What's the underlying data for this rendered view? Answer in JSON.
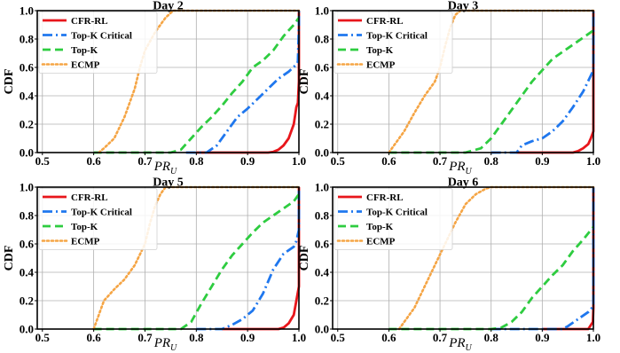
{
  "chart_data": [
    {
      "type": "line",
      "title": "Day 2",
      "ylabel": "CDF",
      "xlabel": "PR",
      "xlabel_sub": "U",
      "xlim": [
        0.49,
        1.0
      ],
      "ylim": [
        0.0,
        1.0
      ],
      "xticks": [
        "0.5",
        "0.6",
        "0.7",
        "0.8",
        "0.9",
        "1.0"
      ],
      "yticks": [
        "0.0",
        "0.2",
        "0.4",
        "0.6",
        "0.8",
        "1.0"
      ],
      "grid": true,
      "legend": "upper-left",
      "series": [
        {
          "name": "CFR-RL",
          "color": "#e8161b",
          "style": "solid",
          "points": [
            [
              0.8,
              0
            ],
            [
              0.94,
              0.0
            ],
            [
              0.95,
              0.005
            ],
            [
              0.96,
              0.02
            ],
            [
              0.97,
              0.05
            ],
            [
              0.98,
              0.1
            ],
            [
              0.99,
              0.2
            ],
            [
              0.995,
              0.32
            ],
            [
              0.998,
              0.35
            ],
            [
              1.0,
              0.5
            ],
            [
              1.0,
              1.0
            ]
          ]
        },
        {
          "name": "Top-K Critical",
          "color": "#1f77ee",
          "style": "dashdot",
          "points": [
            [
              0.78,
              0
            ],
            [
              0.82,
              0.0
            ],
            [
              0.84,
              0.05
            ],
            [
              0.86,
              0.15
            ],
            [
              0.88,
              0.25
            ],
            [
              0.9,
              0.31
            ],
            [
              0.92,
              0.38
            ],
            [
              0.94,
              0.45
            ],
            [
              0.96,
              0.52
            ],
            [
              0.98,
              0.57
            ],
            [
              0.995,
              0.62
            ],
            [
              0.998,
              0.64
            ],
            [
              1.0,
              0.9
            ],
            [
              1.0,
              1.0
            ]
          ]
        },
        {
          "name": "Top-K",
          "color": "#2ecc40",
          "style": "dashed",
          "points": [
            [
              0.6,
              0
            ],
            [
              0.75,
              0.0
            ],
            [
              0.77,
              0.02
            ],
            [
              0.79,
              0.1
            ],
            [
              0.81,
              0.18
            ],
            [
              0.83,
              0.25
            ],
            [
              0.85,
              0.33
            ],
            [
              0.87,
              0.42
            ],
            [
              0.89,
              0.5
            ],
            [
              0.91,
              0.6
            ],
            [
              0.93,
              0.65
            ],
            [
              0.95,
              0.72
            ],
            [
              0.97,
              0.82
            ],
            [
              0.99,
              0.9
            ],
            [
              1.0,
              0.95
            ]
          ]
        },
        {
          "name": "ECMP",
          "color": "#f5a545",
          "style": "dotted",
          "points": [
            [
              0.61,
              0.0
            ],
            [
              0.62,
              0.03
            ],
            [
              0.64,
              0.1
            ],
            [
              0.66,
              0.25
            ],
            [
              0.68,
              0.45
            ],
            [
              0.69,
              0.6
            ],
            [
              0.7,
              0.72
            ],
            [
              0.72,
              0.85
            ],
            [
              0.74,
              0.95
            ],
            [
              0.755,
              1.0
            ],
            [
              1.0,
              1.0
            ]
          ]
        }
      ]
    },
    {
      "type": "line",
      "title": "Day 3",
      "ylabel": "CDF",
      "xlabel": "PR",
      "xlabel_sub": "U",
      "xlim": [
        0.49,
        1.0
      ],
      "ylim": [
        0.0,
        1.0
      ],
      "xticks": [
        "0.5",
        "0.6",
        "0.7",
        "0.8",
        "0.9",
        "1.0"
      ],
      "yticks": [
        "0.0",
        "0.2",
        "0.4",
        "0.6",
        "0.8",
        "1.0"
      ],
      "grid": true,
      "legend": "upper-left",
      "series": [
        {
          "name": "CFR-RL",
          "color": "#e8161b",
          "style": "solid",
          "points": [
            [
              0.85,
              0
            ],
            [
              0.96,
              0.0
            ],
            [
              0.97,
              0.01
            ],
            [
              0.98,
              0.03
            ],
            [
              0.99,
              0.06
            ],
            [
              0.995,
              0.1
            ],
            [
              1.0,
              0.15
            ],
            [
              1.0,
              1.0
            ]
          ]
        },
        {
          "name": "Top-K Critical",
          "color": "#1f77ee",
          "style": "dashdot",
          "points": [
            [
              0.8,
              0
            ],
            [
              0.85,
              0.0
            ],
            [
              0.86,
              0.05
            ],
            [
              0.88,
              0.08
            ],
            [
              0.9,
              0.1
            ],
            [
              0.92,
              0.15
            ],
            [
              0.94,
              0.22
            ],
            [
              0.96,
              0.32
            ],
            [
              0.98,
              0.43
            ],
            [
              1.0,
              0.58
            ],
            [
              1.0,
              1.0
            ]
          ]
        },
        {
          "name": "Top-K",
          "color": "#2ecc40",
          "style": "dashed",
          "points": [
            [
              0.6,
              0
            ],
            [
              0.75,
              0.0
            ],
            [
              0.78,
              0.03
            ],
            [
              0.8,
              0.1
            ],
            [
              0.82,
              0.2
            ],
            [
              0.84,
              0.3
            ],
            [
              0.86,
              0.4
            ],
            [
              0.88,
              0.5
            ],
            [
              0.9,
              0.58
            ],
            [
              0.92,
              0.66
            ],
            [
              0.94,
              0.71
            ],
            [
              0.96,
              0.76
            ],
            [
              0.98,
              0.81
            ],
            [
              1.0,
              0.86
            ]
          ]
        },
        {
          "name": "ECMP",
          "color": "#f5a545",
          "style": "dotted",
          "points": [
            [
              0.6,
              0.0
            ],
            [
              0.61,
              0.05
            ],
            [
              0.63,
              0.15
            ],
            [
              0.65,
              0.28
            ],
            [
              0.67,
              0.4
            ],
            [
              0.69,
              0.5
            ],
            [
              0.7,
              0.6
            ],
            [
              0.71,
              0.75
            ],
            [
              0.72,
              0.88
            ],
            [
              0.73,
              0.97
            ],
            [
              0.74,
              1.0
            ],
            [
              1.0,
              1.0
            ]
          ]
        }
      ]
    },
    {
      "type": "line",
      "title": "Day 5",
      "ylabel": "CDF",
      "xlabel": "PR",
      "xlabel_sub": "U",
      "xlim": [
        0.49,
        1.0
      ],
      "ylim": [
        0.0,
        1.0
      ],
      "xticks": [
        "0.5",
        "0.6",
        "0.7",
        "0.8",
        "0.9",
        "1.0"
      ],
      "yticks": [
        "0.0",
        "0.2",
        "0.4",
        "0.6",
        "0.8",
        "1.0"
      ],
      "grid": true,
      "legend": "upper-left",
      "series": [
        {
          "name": "CFR-RL",
          "color": "#e8161b",
          "style": "solid",
          "points": [
            [
              0.85,
              0
            ],
            [
              0.96,
              0.0
            ],
            [
              0.97,
              0.01
            ],
            [
              0.98,
              0.04
            ],
            [
              0.99,
              0.1
            ],
            [
              0.995,
              0.2
            ],
            [
              1.0,
              0.3
            ],
            [
              1.0,
              1.0
            ]
          ]
        },
        {
          "name": "Top-K Critical",
          "color": "#1f77ee",
          "style": "dashdot",
          "points": [
            [
              0.8,
              0
            ],
            [
              0.85,
              0.0
            ],
            [
              0.87,
              0.03
            ],
            [
              0.89,
              0.07
            ],
            [
              0.91,
              0.13
            ],
            [
              0.93,
              0.25
            ],
            [
              0.95,
              0.42
            ],
            [
              0.97,
              0.53
            ],
            [
              0.99,
              0.58
            ],
            [
              0.995,
              0.62
            ],
            [
              1.0,
              0.7
            ],
            [
              1.0,
              1.0
            ]
          ]
        },
        {
          "name": "Top-K",
          "color": "#2ecc40",
          "style": "dashed",
          "points": [
            [
              0.6,
              0
            ],
            [
              0.77,
              0.0
            ],
            [
              0.79,
              0.05
            ],
            [
              0.81,
              0.18
            ],
            [
              0.83,
              0.3
            ],
            [
              0.85,
              0.42
            ],
            [
              0.87,
              0.52
            ],
            [
              0.89,
              0.6
            ],
            [
              0.91,
              0.68
            ],
            [
              0.93,
              0.75
            ],
            [
              0.95,
              0.8
            ],
            [
              0.97,
              0.85
            ],
            [
              0.99,
              0.9
            ],
            [
              1.0,
              0.95
            ]
          ]
        },
        {
          "name": "ECMP",
          "color": "#f5a545",
          "style": "dotted",
          "points": [
            [
              0.6,
              0.0
            ],
            [
              0.61,
              0.1
            ],
            [
              0.62,
              0.2
            ],
            [
              0.64,
              0.28
            ],
            [
              0.66,
              0.35
            ],
            [
              0.68,
              0.45
            ],
            [
              0.7,
              0.6
            ],
            [
              0.71,
              0.75
            ],
            [
              0.72,
              0.87
            ],
            [
              0.73,
              0.95
            ],
            [
              0.74,
              1.0
            ],
            [
              1.0,
              1.0
            ]
          ]
        }
      ]
    },
    {
      "type": "line",
      "title": "Day 6",
      "ylabel": "CDF",
      "xlabel": "PR",
      "xlabel_sub": "U",
      "xlim": [
        0.49,
        1.0
      ],
      "ylim": [
        0.0,
        1.0
      ],
      "xticks": [
        "0.5",
        "0.6",
        "0.7",
        "0.8",
        "0.9",
        "1.0"
      ],
      "yticks": [
        "0.0",
        "0.2",
        "0.4",
        "0.6",
        "0.8",
        "1.0"
      ],
      "grid": true,
      "legend": "upper-left",
      "series": [
        {
          "name": "CFR-RL",
          "color": "#e8161b",
          "style": "solid",
          "points": [
            [
              0.9,
              0
            ],
            [
              0.99,
              0.0
            ],
            [
              0.999,
              0.05
            ],
            [
              1.0,
              0.15
            ],
            [
              1.0,
              1.0
            ]
          ]
        },
        {
          "name": "Top-K Critical",
          "color": "#1f77ee",
          "style": "dashdot",
          "points": [
            [
              0.8,
              0
            ],
            [
              0.94,
              0.0
            ],
            [
              0.95,
              0.02
            ],
            [
              0.97,
              0.07
            ],
            [
              0.99,
              0.12
            ],
            [
              1.0,
              0.16
            ],
            [
              1.0,
              1.0
            ]
          ]
        },
        {
          "name": "Top-K",
          "color": "#2ecc40",
          "style": "dashed",
          "points": [
            [
              0.6,
              0
            ],
            [
              0.8,
              0.0
            ],
            [
              0.82,
              0.01
            ],
            [
              0.84,
              0.05
            ],
            [
              0.86,
              0.12
            ],
            [
              0.88,
              0.22
            ],
            [
              0.9,
              0.3
            ],
            [
              0.92,
              0.38
            ],
            [
              0.94,
              0.45
            ],
            [
              0.96,
              0.55
            ],
            [
              0.98,
              0.63
            ],
            [
              1.0,
              0.72
            ]
          ]
        },
        {
          "name": "ECMP",
          "color": "#f5a545",
          "style": "dotted",
          "points": [
            [
              0.62,
              0.0
            ],
            [
              0.63,
              0.05
            ],
            [
              0.65,
              0.15
            ],
            [
              0.67,
              0.3
            ],
            [
              0.69,
              0.45
            ],
            [
              0.71,
              0.6
            ],
            [
              0.73,
              0.75
            ],
            [
              0.75,
              0.88
            ],
            [
              0.77,
              0.95
            ],
            [
              0.79,
              0.99
            ],
            [
              0.8,
              1.0
            ],
            [
              1.0,
              1.0
            ]
          ]
        }
      ]
    }
  ]
}
